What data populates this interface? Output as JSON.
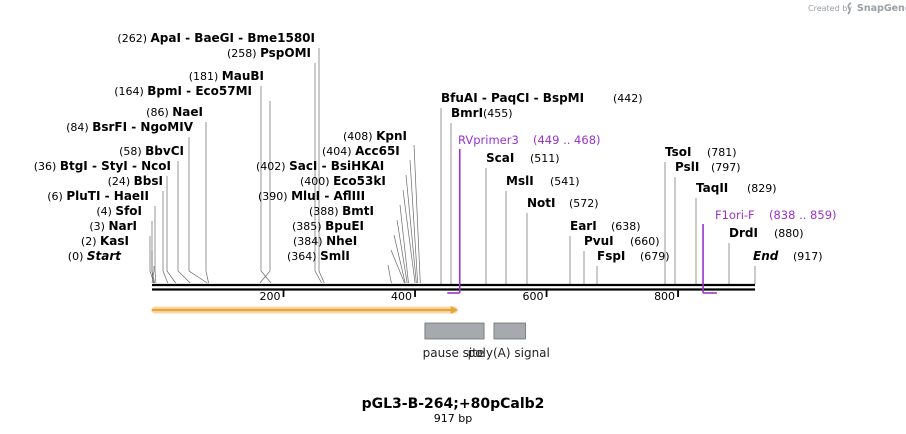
{
  "credit": {
    "created_by": "Created by",
    "brand": "SnapGene"
  },
  "map": {
    "title": "pGL3-B-264;+80pCalb2",
    "length_label": "917 bp",
    "total_bp": 917,
    "ticks": [
      {
        "pos": 200,
        "label": "200"
      },
      {
        "pos": 400,
        "label": "400"
      },
      {
        "pos": 600,
        "label": "600"
      },
      {
        "pos": 800,
        "label": "800"
      }
    ],
    "features": [
      {
        "name": "pause site",
        "start": 415,
        "end": 505,
        "color": "#a6a9ad"
      },
      {
        "name": "poly(A) signal",
        "start": 520,
        "end": 568,
        "color": "#a6a9ad"
      }
    ],
    "orf": {
      "start": 1,
      "end": 465,
      "color": "#e8a33c",
      "glow": "#f6d9a6"
    },
    "primers": [
      {
        "name": "RVprimer3",
        "range": "(449 .. 468)",
        "start": 449,
        "end": 468,
        "color": "#9a33cc"
      },
      {
        "name": "F1ori-F",
        "range": "(838 .. 859)",
        "start": 838,
        "end": 859,
        "color": "#9a33cc"
      }
    ],
    "left_sites": [
      {
        "pos_label": "(262)",
        "names": [
          "ApaI",
          "BaeGI",
          "Bme1580I"
        ],
        "pos": 262
      },
      {
        "pos_label": "(258)",
        "names": [
          "PspOMI"
        ],
        "pos": 258
      },
      {
        "pos_label": "(181)",
        "names": [
          "MauBI"
        ],
        "pos": 181
      },
      {
        "pos_label": "(164)",
        "names": [
          "BpmI",
          "Eco57MI"
        ],
        "pos": 164
      },
      {
        "pos_label": "(86)",
        "names": [
          "NaeI"
        ],
        "pos": 86
      },
      {
        "pos_label": "(84)",
        "names": [
          "BsrFI",
          "NgoMIV"
        ],
        "pos": 84
      },
      {
        "pos_label": "(58)",
        "names": [
          "BbvCI"
        ],
        "pos": 58
      },
      {
        "pos_label": "(36)",
        "names": [
          "BtgI",
          "StyI",
          "NcoI"
        ],
        "pos": 36
      },
      {
        "pos_label": "(24)",
        "names": [
          "BbsI"
        ],
        "pos": 24
      },
      {
        "pos_label": "(6)",
        "names": [
          "PluTI",
          "HaeII"
        ],
        "pos": 6
      },
      {
        "pos_label": "(4)",
        "names": [
          "SfoI"
        ],
        "pos": 4
      },
      {
        "pos_label": "(3)",
        "names": [
          "NarI"
        ],
        "pos": 3
      },
      {
        "pos_label": "(2)",
        "names": [
          "KasI"
        ],
        "pos": 2
      },
      {
        "pos_label": "(0)",
        "names": [
          "Start"
        ],
        "pos": 0
      }
    ],
    "mid_sites": [
      {
        "pos_label": "(408)",
        "names": [
          "KpnI"
        ],
        "pos": 408
      },
      {
        "pos_label": "(404)",
        "names": [
          "Acc65I"
        ],
        "pos": 404
      },
      {
        "pos_label": "(402)",
        "names": [
          "SacI",
          "BsiHKAI"
        ],
        "pos": 402
      },
      {
        "pos_label": "(400)",
        "names": [
          "Eco53kI"
        ],
        "pos": 400
      },
      {
        "pos_label": "(390)",
        "names": [
          "MluI",
          "AflIII"
        ],
        "pos": 390
      },
      {
        "pos_label": "(388)",
        "names": [
          "BmtI"
        ],
        "pos": 388
      },
      {
        "pos_label": "(385)",
        "names": [
          "BpuEI"
        ],
        "pos": 385
      },
      {
        "pos_label": "(384)",
        "names": [
          "NheI"
        ],
        "pos": 384
      },
      {
        "pos_label": "(364)",
        "names": [
          "SmlI"
        ],
        "pos": 364
      }
    ],
    "right_sites": [
      {
        "names": [
          "BfuAI",
          "PaqCI",
          "BspMI"
        ],
        "pos_label": "(442)",
        "pos": 442
      },
      {
        "names": [
          "BmrI"
        ],
        "pos_label": "(455)",
        "pos": 455
      },
      {
        "names": [
          "ScaI"
        ],
        "pos_label": "(511)",
        "pos": 511
      },
      {
        "names": [
          "MslI"
        ],
        "pos_label": "(541)",
        "pos": 541
      },
      {
        "names": [
          "NotI"
        ],
        "pos_label": "(572)",
        "pos": 572
      },
      {
        "names": [
          "EarI"
        ],
        "pos_label": "(638)",
        "pos": 638
      },
      {
        "names": [
          "PvuI"
        ],
        "pos_label": "(660)",
        "pos": 660
      },
      {
        "names": [
          "FspI"
        ],
        "pos_label": "(679)",
        "pos": 679
      },
      {
        "names": [
          "TsoI"
        ],
        "pos_label": "(781)",
        "pos": 781
      },
      {
        "names": [
          "PslI"
        ],
        "pos_label": "(797)",
        "pos": 797
      },
      {
        "names": [
          "TaqII"
        ],
        "pos_label": "(829)",
        "pos": 829
      },
      {
        "names": [
          "DrdI"
        ],
        "pos_label": "(880)",
        "pos": 880
      },
      {
        "names": [
          "End"
        ],
        "pos_label": "(917)",
        "pos": 917
      }
    ]
  }
}
